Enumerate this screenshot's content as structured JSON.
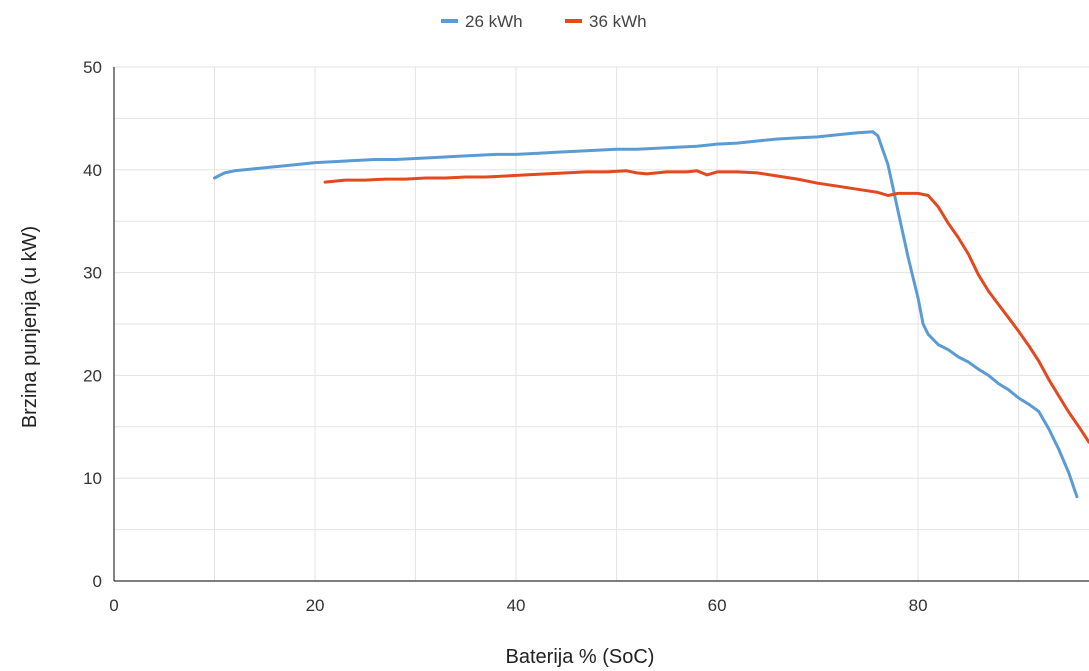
{
  "chart_data": {
    "type": "line",
    "title": "",
    "xlabel": "Baterija % (SoC)",
    "ylabel": "Brzina punjenja (u kW)",
    "xlim": [
      0,
      97
    ],
    "ylim": [
      0,
      50
    ],
    "xticks": [
      0,
      20,
      40,
      60,
      80
    ],
    "yticks": [
      0,
      10,
      20,
      30,
      40,
      50
    ],
    "grid": true,
    "legend_position": "top-center",
    "series": [
      {
        "name": "26 kWh",
        "color": "#5b9bd5",
        "points": [
          [
            10,
            39.2
          ],
          [
            11,
            39.7
          ],
          [
            12,
            39.9
          ],
          [
            14,
            40.1
          ],
          [
            16,
            40.3
          ],
          [
            18,
            40.5
          ],
          [
            20,
            40.7
          ],
          [
            22,
            40.8
          ],
          [
            24,
            40.9
          ],
          [
            26,
            41.0
          ],
          [
            28,
            41.0
          ],
          [
            30,
            41.1
          ],
          [
            32,
            41.2
          ],
          [
            34,
            41.3
          ],
          [
            36,
            41.4
          ],
          [
            38,
            41.5
          ],
          [
            40,
            41.5
          ],
          [
            42,
            41.6
          ],
          [
            44,
            41.7
          ],
          [
            46,
            41.8
          ],
          [
            48,
            41.9
          ],
          [
            50,
            42.0
          ],
          [
            52,
            42.0
          ],
          [
            54,
            42.1
          ],
          [
            56,
            42.2
          ],
          [
            58,
            42.3
          ],
          [
            60,
            42.5
          ],
          [
            62,
            42.6
          ],
          [
            64,
            42.8
          ],
          [
            66,
            43.0
          ],
          [
            68,
            43.1
          ],
          [
            70,
            43.2
          ],
          [
            72,
            43.4
          ],
          [
            74,
            43.6
          ],
          [
            75.5,
            43.7
          ],
          [
            76,
            43.3
          ],
          [
            77,
            40.5
          ],
          [
            78,
            36
          ],
          [
            79,
            31.5
          ],
          [
            80,
            27.5
          ],
          [
            80.5,
            25
          ],
          [
            81,
            24
          ],
          [
            82,
            23
          ],
          [
            83,
            22.5
          ],
          [
            84,
            21.8
          ],
          [
            85,
            21.3
          ],
          [
            86,
            20.6
          ],
          [
            87,
            20.0
          ],
          [
            88,
            19.2
          ],
          [
            89,
            18.6
          ],
          [
            90,
            17.8
          ],
          [
            91,
            17.2
          ],
          [
            92,
            16.5
          ],
          [
            93,
            14.8
          ],
          [
            94,
            12.8
          ],
          [
            95,
            10.5
          ],
          [
            95.8,
            8.2
          ]
        ]
      },
      {
        "name": "36 kWh",
        "color": "#e2491f",
        "points": [
          [
            21,
            38.8
          ],
          [
            23,
            39.0
          ],
          [
            25,
            39.0
          ],
          [
            27,
            39.1
          ],
          [
            29,
            39.1
          ],
          [
            31,
            39.2
          ],
          [
            33,
            39.2
          ],
          [
            35,
            39.3
          ],
          [
            37,
            39.3
          ],
          [
            39,
            39.4
          ],
          [
            41,
            39.5
          ],
          [
            43,
            39.6
          ],
          [
            45,
            39.7
          ],
          [
            47,
            39.8
          ],
          [
            49,
            39.8
          ],
          [
            51,
            39.9
          ],
          [
            52,
            39.7
          ],
          [
            53,
            39.6
          ],
          [
            55,
            39.8
          ],
          [
            57,
            39.8
          ],
          [
            58,
            39.9
          ],
          [
            59,
            39.5
          ],
          [
            60,
            39.8
          ],
          [
            62,
            39.8
          ],
          [
            64,
            39.7
          ],
          [
            66,
            39.4
          ],
          [
            68,
            39.1
          ],
          [
            70,
            38.7
          ],
          [
            72,
            38.4
          ],
          [
            74,
            38.1
          ],
          [
            76,
            37.8
          ],
          [
            77,
            37.5
          ],
          [
            78,
            37.7
          ],
          [
            80,
            37.7
          ],
          [
            81,
            37.5
          ],
          [
            82,
            36.4
          ],
          [
            83,
            34.8
          ],
          [
            84,
            33.4
          ],
          [
            85,
            31.8
          ],
          [
            86,
            29.8
          ],
          [
            87,
            28.2
          ],
          [
            88,
            26.9
          ],
          [
            89,
            25.6
          ],
          [
            90,
            24.3
          ],
          [
            91,
            22.9
          ],
          [
            92,
            21.4
          ],
          [
            93,
            19.6
          ],
          [
            94,
            18.0
          ],
          [
            95,
            16.4
          ],
          [
            96,
            15.0
          ],
          [
            97,
            13.5
          ]
        ]
      }
    ]
  }
}
